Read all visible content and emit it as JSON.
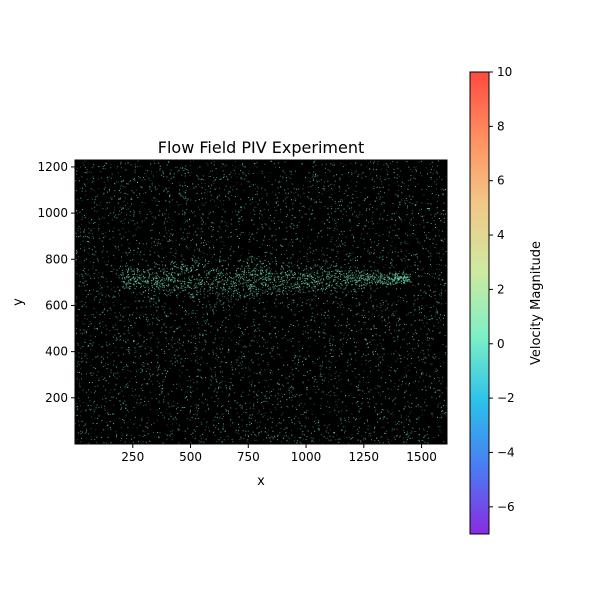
{
  "chart_data": {
    "type": "heatmap",
    "title": "Flow Field PIV Experiment",
    "xlabel": "x",
    "ylabel": "y",
    "xlim": [
      0,
      1610
    ],
    "ylim": [
      0,
      1230
    ],
    "x_ticks": [
      250,
      500,
      750,
      1000,
      1250,
      1500
    ],
    "y_ticks": [
      200,
      400,
      600,
      800,
      1000,
      1200
    ],
    "background_color": "#000000",
    "particle_color": "#6fdcb8",
    "colorbar": {
      "label": "Velocity Magnitude",
      "range": [
        -7,
        10
      ],
      "ticks": [
        -6,
        -4,
        -2,
        0,
        2,
        4,
        6,
        8,
        10
      ],
      "colormap": "rainbow",
      "colors": [
        "#8a2be2",
        "#4a7cf2",
        "#2cc0ea",
        "#7ef0c4",
        "#cfe9a0",
        "#f2c888",
        "#ff9060",
        "#ff4a40"
      ]
    },
    "features": [
      {
        "name": "dense-band",
        "x_range": [
          200,
          1450
        ],
        "y_center": 720
      },
      {
        "name": "dark-streak",
        "x_range": [
          450,
          850
        ],
        "y_range": [
          720,
          850
        ]
      }
    ]
  }
}
